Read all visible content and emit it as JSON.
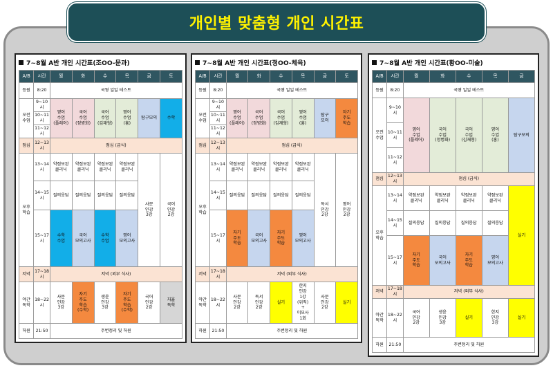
{
  "title": "개인별 맞춤형 개인 시간표",
  "panels": [
    {
      "title": "7~8월 A반 개인 시간표(조OO-문과)",
      "header": [
        "A/B",
        "시간",
        "월",
        "화",
        "수",
        "목",
        "금",
        "토"
      ],
      "rows": [
        {
          "h": 23,
          "cells": [
            {
              "t": "등원",
              "c": "lab"
            },
            {
              "t": "8:20",
              "c": "lab"
            },
            {
              "t": "국영 일일 테스트",
              "c": "lab",
              "cs": 6
            }
          ]
        },
        {
          "h": 19,
          "cells": [
            {
              "t": "오전\n수업",
              "c": "lab",
              "rs": 3
            },
            {
              "t": "9~10시",
              "c": "lab"
            },
            {
              "t": "영어\n수업\n(플레어)",
              "c": "pink",
              "rs": 3
            },
            {
              "t": "국어\n수업\n(정병화)",
              "c": "pink",
              "rs": 3
            },
            {
              "t": "국어\n수업\n(김재형)",
              "c": "green",
              "rs": 3
            },
            {
              "t": "영어\n수업\n(홍)",
              "c": "green",
              "rs": 3
            },
            {
              "t": "탐구모의",
              "c": "blue",
              "rs": 3
            },
            {
              "t": "수학",
              "c": "cyan",
              "rs": 3
            }
          ]
        },
        {
          "h": 19,
          "cells": [
            {
              "t": "10~11시",
              "c": "lab"
            }
          ]
        },
        {
          "h": 19,
          "cells": [
            {
              "t": "11~12시",
              "c": "lab"
            }
          ]
        },
        {
          "h": 22,
          "cells": [
            {
              "t": "점심",
              "c": "peach"
            },
            {
              "t": "12~13시",
              "c": "peach"
            },
            {
              "t": "점심 (급식)",
              "c": "peach",
              "cs": 6
            }
          ]
        },
        {
          "h": 40,
          "cells": [
            {
              "t": "오후\n학습",
              "c": "lab",
              "rs": 3
            },
            {
              "t": "13~14시",
              "c": "lab"
            },
            {
              "t": "약점보완\n클리닉",
              "c": "lab"
            },
            {
              "t": "약점보완\n클리닉",
              "c": "lab"
            },
            {
              "t": "약점보완\n클리닉",
              "c": "lab"
            },
            {
              "t": "약점보완\n클리닉",
              "c": "lab"
            },
            {
              "t": "사문\n인강\n3강",
              "c": "lab",
              "rs": 3
            },
            {
              "t": "국어\n인강\n2강",
              "c": "lab",
              "rs": 3
            }
          ]
        },
        {
          "h": 42,
          "cells": [
            {
              "t": "14~15시",
              "c": "lab"
            },
            {
              "t": "질의응답",
              "c": "lab"
            },
            {
              "t": "질의응답",
              "c": "lab"
            },
            {
              "t": "질의응답",
              "c": "lab"
            },
            {
              "t": "질의응답",
              "c": "lab"
            }
          ]
        },
        {
          "h": 82,
          "cells": [
            {
              "t": "15~17시",
              "c": "lab"
            },
            {
              "t": "수학\n수업",
              "c": "cyan"
            },
            {
              "t": "국어\n모의고사",
              "c": "blue"
            },
            {
              "t": "수학\n수업",
              "c": "cyan"
            },
            {
              "t": "영어\n모의고사",
              "c": "blue"
            }
          ]
        },
        {
          "h": 22,
          "cells": [
            {
              "t": "저녁",
              "c": "peach"
            },
            {
              "t": "17~18시",
              "c": "peach"
            },
            {
              "t": "저녁 (외부 식사)",
              "c": "peach",
              "cs": 6
            }
          ]
        },
        {
          "h": 60,
          "cells": [
            {
              "t": "야간\n독학",
              "c": "lab"
            },
            {
              "t": "18~22시",
              "c": "lab"
            },
            {
              "t": "사문\n인강\n3강",
              "c": "lab"
            },
            {
              "t": "자기\n주도\n학습\n(수학)",
              "c": "orange"
            },
            {
              "t": "생윤\n인강\n3강",
              "c": "lab"
            },
            {
              "t": "자기\n주도\n학습\n(수학)",
              "c": "orange"
            },
            {
              "t": "국어\n인강\n2강",
              "c": "lab"
            },
            {
              "t": "자율\n독학",
              "c": "gray"
            }
          ]
        },
        {
          "h": 22,
          "cells": [
            {
              "t": "하원",
              "c": "lab"
            },
            {
              "t": "21:50",
              "c": "lab"
            },
            {
              "t": "주변정리 및 하원",
              "c": "lab",
              "cs": 6
            }
          ]
        }
      ]
    },
    {
      "title": "7~8월 A반 개인 시간표(정OO-체육)",
      "header": [
        "A/B",
        "시간",
        "월",
        "화",
        "수",
        "목",
        "금",
        "토"
      ],
      "rows": [
        {
          "h": 23,
          "cells": [
            {
              "t": "등원",
              "c": "lab"
            },
            {
              "t": "8:20",
              "c": "lab"
            },
            {
              "t": "국영 일일 테스트",
              "c": "lab",
              "cs": 6
            }
          ]
        },
        {
          "h": 19,
          "cells": [
            {
              "t": "오전\n수업",
              "c": "lab",
              "rs": 3
            },
            {
              "t": "9~10시",
              "c": "lab"
            },
            {
              "t": "영어\n수업\n(플레어)",
              "c": "pink",
              "rs": 3
            },
            {
              "t": "국어\n수업\n(정병화)",
              "c": "pink",
              "rs": 3
            },
            {
              "t": "국어\n수업\n(김재형)",
              "c": "green",
              "rs": 3
            },
            {
              "t": "영어\n수업\n(홍)",
              "c": "green",
              "rs": 3
            },
            {
              "t": "탐구\n모의",
              "c": "blue",
              "rs": 3
            },
            {
              "t": "자기\n주도\n학습",
              "c": "orange",
              "rs": 3
            }
          ]
        },
        {
          "h": 19,
          "cells": [
            {
              "t": "10~11시",
              "c": "lab"
            }
          ]
        },
        {
          "h": 19,
          "cells": [
            {
              "t": "11~12시",
              "c": "lab"
            }
          ]
        },
        {
          "h": 22,
          "cells": [
            {
              "t": "점심",
              "c": "peach"
            },
            {
              "t": "12~13시",
              "c": "peach"
            },
            {
              "t": "점심 (급식)",
              "c": "peach",
              "cs": 6
            }
          ]
        },
        {
          "h": 40,
          "cells": [
            {
              "t": "오후\n학습",
              "c": "lab",
              "rs": 3
            },
            {
              "t": "13~14시",
              "c": "lab"
            },
            {
              "t": "약점보완\n클리닉",
              "c": "lab"
            },
            {
              "t": "약점보완\n클리닉",
              "c": "lab"
            },
            {
              "t": "약점보완\n클리닉",
              "c": "lab"
            },
            {
              "t": "약점보완\n클리닉",
              "c": "lab"
            },
            {
              "t": "독서\n인강\n2강",
              "c": "lab",
              "rs": 3
            },
            {
              "t": "영어\n인강\n2강",
              "c": "lab",
              "rs": 3
            }
          ]
        },
        {
          "h": 42,
          "cells": [
            {
              "t": "14~15시",
              "c": "lab"
            },
            {
              "t": "질의응답",
              "c": "lab"
            },
            {
              "t": "질의응답",
              "c": "lab"
            },
            {
              "t": "질의응답",
              "c": "lab"
            },
            {
              "t": "질의응답",
              "c": "lab"
            }
          ]
        },
        {
          "h": 82,
          "cells": [
            {
              "t": "15~17시",
              "c": "lab"
            },
            {
              "t": "자기\n주도\n학습",
              "c": "orange"
            },
            {
              "t": "국어\n모의고사",
              "c": "blue"
            },
            {
              "t": "자기\n주도\n학습",
              "c": "orange"
            },
            {
              "t": "영어\n모의고사",
              "c": "blue"
            }
          ]
        },
        {
          "h": 22,
          "cells": [
            {
              "t": "저녁",
              "c": "peach"
            },
            {
              "t": "17~18시",
              "c": "peach"
            },
            {
              "t": "저녁 (외부 식사)",
              "c": "peach",
              "cs": 6
            }
          ]
        },
        {
          "h": 60,
          "cells": [
            {
              "t": "야간\n독학",
              "c": "lab"
            },
            {
              "t": "18~22시",
              "c": "lab"
            },
            {
              "t": "사문\n인강\n2강",
              "c": "lab"
            },
            {
              "t": "독서\n인강\n2강",
              "c": "lab"
            },
            {
              "t": "실기",
              "c": "yellow"
            },
            {
              "t": "한지\n인강\n1강\n(위직)\n+\n이모사\n1회",
              "c": "lab"
            },
            {
              "t": "사문\n인강\n2강",
              "c": "lab"
            },
            {
              "t": "실기",
              "c": "yellow"
            }
          ]
        },
        {
          "h": 22,
          "cells": [
            {
              "t": "하원",
              "c": "lab"
            },
            {
              "t": "21:50",
              "c": "lab"
            },
            {
              "t": "주변정리 및 하원",
              "c": "lab",
              "cs": 6
            }
          ]
        }
      ]
    },
    {
      "title": "7~8월 A반 개인 시간표(황OO-미술)",
      "header": [
        "A/B",
        "시간",
        "월",
        "화",
        "수",
        "목",
        "금"
      ],
      "rows": [
        {
          "h": 22,
          "cells": [
            {
              "t": "등원",
              "c": "lab"
            },
            {
              "t": "8:20",
              "c": "lab"
            },
            {
              "t": "국영 일일 테스트",
              "c": "lab",
              "cs": 5
            }
          ]
        },
        {
          "h": 36,
          "cells": [
            {
              "t": "오전\n수업",
              "c": "lab",
              "rs": 3
            },
            {
              "t": "9~10시",
              "c": "lab"
            },
            {
              "t": "영어\n수업\n(플레어)",
              "c": "pink",
              "rs": 3
            },
            {
              "t": "국어\n수업\n(정병화)",
              "c": "green",
              "rs": 3
            },
            {
              "t": "국어\n수업\n(김재형)",
              "c": "green",
              "rs": 3
            },
            {
              "t": "영어\n수업\n(홍)",
              "c": "green",
              "rs": 3
            },
            {
              "t": "탐구모의",
              "c": "blue",
              "rs": 3
            }
          ]
        },
        {
          "h": 36,
          "cells": [
            {
              "t": "10~11시",
              "c": "lab"
            }
          ]
        },
        {
          "h": 36,
          "cells": [
            {
              "t": "11~12시",
              "c": "lab"
            }
          ]
        },
        {
          "h": 19,
          "cells": [
            {
              "t": "점심",
              "c": "peach"
            },
            {
              "t": "12~13시",
              "c": "peach"
            },
            {
              "t": "점심 (급식)",
              "c": "peach",
              "cs": 5
            }
          ]
        },
        {
          "h": 36,
          "cells": [
            {
              "t": "오후\n학습",
              "c": "lab",
              "rs": 3
            },
            {
              "t": "13~14시",
              "c": "lab"
            },
            {
              "t": "약점보완\n클리닉",
              "c": "lab"
            },
            {
              "t": "약점보완\n클리닉",
              "c": "lab"
            },
            {
              "t": "약점보완\n클리닉",
              "c": "lab"
            },
            {
              "t": "약점보완\n클리닉",
              "c": "lab"
            },
            {
              "t": "실기",
              "c": "yellow",
              "rs": 3
            }
          ]
        },
        {
          "h": 36,
          "cells": [
            {
              "t": "14~15시",
              "c": "lab"
            },
            {
              "t": "질의응답",
              "c": "lab"
            },
            {
              "t": "질의응답",
              "c": "lab"
            },
            {
              "t": "질의응답",
              "c": "lab"
            },
            {
              "t": "질의응답",
              "c": "lab"
            }
          ]
        },
        {
          "h": 72,
          "cells": [
            {
              "t": "15~17시",
              "c": "lab"
            },
            {
              "t": "자기\n주도\n학습",
              "c": "orange"
            },
            {
              "t": "국어\n모의고사",
              "c": "blue"
            },
            {
              "t": "자기\n주도\n학습",
              "c": "orange"
            },
            {
              "t": "영어\n모의고사",
              "c": "blue"
            }
          ]
        },
        {
          "h": 19,
          "cells": [
            {
              "t": "저녁",
              "c": "peach"
            },
            {
              "t": "17~18시",
              "c": "peach"
            },
            {
              "t": "저녁 (외부 식사)",
              "c": "peach",
              "cs": 5
            }
          ]
        },
        {
          "h": 56,
          "cells": [
            {
              "t": "야간\n독학",
              "c": "lab"
            },
            {
              "t": "18~22시",
              "c": "lab"
            },
            {
              "t": "국어\n인강\n2강",
              "c": "lab"
            },
            {
              "t": "생윤\n인강\n3강",
              "c": "lab"
            },
            {
              "t": "실기",
              "c": "yellow"
            },
            {
              "t": "한지\n인강\n3강",
              "c": "lab"
            },
            {
              "t": "실기",
              "c": "yellow"
            }
          ]
        },
        {
          "h": 22,
          "cells": [
            {
              "t": "하원",
              "c": "lab"
            },
            {
              "t": "21:50",
              "c": "lab"
            },
            {
              "t": "주변정리 및 하원",
              "c": "lab",
              "cs": 5
            }
          ]
        }
      ]
    }
  ]
}
